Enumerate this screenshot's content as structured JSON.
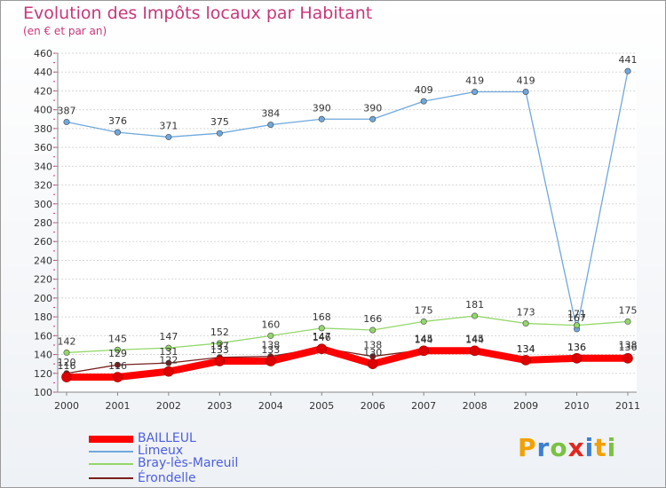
{
  "title": "Evolution des Impôts locaux par Habitant",
  "subtitle": "(en € et par an)",
  "legend": [
    {
      "label": "BAILLEUL",
      "color": "#ff0000"
    },
    {
      "label": "Limeux",
      "color": "#6fa8dc"
    },
    {
      "label": "Bray-lès-Mareuil",
      "color": "#93d76a"
    },
    {
      "label": "Érondelle",
      "color": "#7a1f1f"
    }
  ],
  "logo": {
    "letters": [
      "P",
      "r",
      "o",
      "x",
      "i",
      "t",
      "i"
    ],
    "colors": [
      "#f2a000",
      "#3a7fd0",
      "#7ac142",
      "#e2261c",
      "#3a7fd0",
      "#f2a000",
      "#7ac142"
    ]
  },
  "chart_data": {
    "type": "line",
    "title": "Evolution des Impôts locaux par Habitant",
    "subtitle": "(en € et par an)",
    "x": [
      2000,
      2001,
      2002,
      2003,
      2004,
      2005,
      2006,
      2007,
      2008,
      2009,
      2010,
      2011
    ],
    "ylim": [
      100,
      460
    ],
    "yticks": [
      100,
      120,
      140,
      160,
      180,
      200,
      220,
      240,
      260,
      280,
      300,
      320,
      340,
      360,
      380,
      400,
      420,
      440,
      460
    ],
    "series": [
      {
        "name": "Limeux",
        "color": "#6fa8dc",
        "values": [
          387,
          376,
          371,
          375,
          384,
          390,
          390,
          409,
          419,
          419,
          167,
          441
        ]
      },
      {
        "name": "Bray-lès-Mareuil",
        "color": "#93d76a",
        "values": [
          142,
          145,
          147,
          152,
          160,
          168,
          166,
          175,
          181,
          173,
          171,
          175
        ]
      },
      {
        "name": "Érondelle",
        "color": "#7a1f1f",
        "values": [
          120,
          129,
          131,
          137,
          138,
          147,
          138,
          145,
          145,
          134,
          136,
          138
        ]
      },
      {
        "name": "BAILLEUL",
        "color": "#ff0000",
        "values": [
          116,
          116,
          122,
          133,
          133,
          146,
          130,
          144,
          144,
          134,
          136,
          136
        ]
      }
    ]
  }
}
